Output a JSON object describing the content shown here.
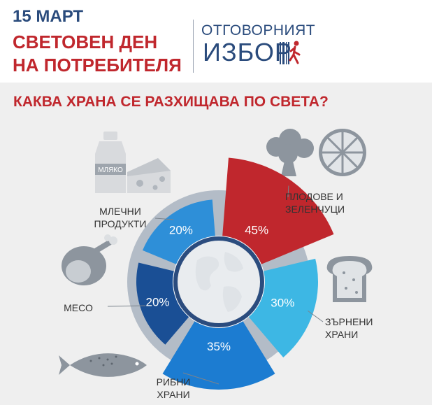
{
  "header": {
    "date": "15 МАРТ",
    "title_line1": "СВЕТОВЕН ДЕН",
    "title_line2": "НА ПОТРЕБИТЕЛЯ",
    "logo_line1": "ОТГОВОРНИЯТ",
    "logo_line2": "ИЗБОР"
  },
  "question": "КАКВА ХРАНА СЕ РАЗХИЩАВА ПО СВЕТА?",
  "icons": {
    "milk_label": "МЛЯКО"
  },
  "colors": {
    "header_blue": "#2a4b7c",
    "header_red": "#c0272d",
    "panel_bg": "#efefef",
    "ring_gray": "#b3bcc7",
    "globe": "#e9ecef"
  },
  "chart_data": {
    "type": "pie",
    "categories": [
      "ПЛОДОВЕ И ЗЕЛЕНЧУЦИ",
      "ЗЪРНЕНИ ХРАНИ",
      "РИБНИ ХРАНИ",
      "МЕСО",
      "МЛЕЧНИ ПРОДУКТИ"
    ],
    "labels": [
      "ПЛОДОВЕ И\nЗЕЛЕНЧУЦИ",
      "ЗЪРНЕНИ\nХРАНИ",
      "РИБНИ\nХРАНИ",
      "МЕСО",
      "МЛЕЧНИ\nПРОДУКТИ"
    ],
    "values": [
      45,
      30,
      35,
      20,
      20
    ],
    "value_labels": [
      "45%",
      "30%",
      "35%",
      "20%",
      "20%"
    ],
    "colors": [
      "#c0272d",
      "#3db7e4",
      "#1c7cd1",
      "#1a4f95",
      "#2e8fd8"
    ]
  }
}
